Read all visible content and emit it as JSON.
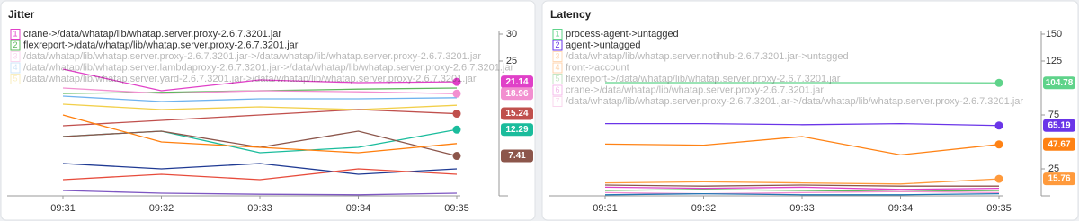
{
  "chart_data": [
    {
      "type": "line",
      "title": "Jitter",
      "categories": [
        "09:31",
        "09:32",
        "09:33",
        "09:34",
        "09:35"
      ],
      "ylim": [
        0,
        30
      ],
      "yticks": [
        25,
        30
      ],
      "series": [
        {
          "key": "1",
          "name": "crane->/data/whatap/lib/whatap.server.proxy-2.6.7.3201.jar",
          "color": "#e040c8",
          "values": [
            23.5,
            19.5,
            21.5,
            21,
            21.14
          ],
          "show_value_label": true
        },
        {
          "key": "2",
          "name": "flexreport->/data/whatap/lib/whatap.server.proxy-2.6.7.3201.jar",
          "color": "#5cb85c",
          "values": [
            19,
            19.2,
            19.5,
            19.8,
            20
          ]
        },
        {
          "key": "3",
          "name": "/data/whatap/lib/whatap.server.proxy-2.6.7.3201.jar->/data/whatap/lib/whatap.server.proxy-2.6.7.3201.jar",
          "color": "#f28fd0",
          "values": [
            20,
            19,
            19.5,
            19.3,
            18.96
          ],
          "show_value_label": true
        },
        {
          "key": "4",
          "name": "/data/whatap/lib/whatap.server.lambdaproxy-2.6.7.3201.jar->/data/whatap/lib/whatap.server.proxy-2.6.7.3201.jar",
          "color": "#6fb3ef",
          "values": [
            18.5,
            17.5,
            18,
            18,
            18.2
          ]
        },
        {
          "key": "5",
          "name": "/data/whatap/lib/whatap.server.yard-2.6.7.3201.jar->/data/whatap/lib/whatap.server.proxy-2.6.7.3201.jar",
          "color": "#f2cf4a",
          "values": [
            17,
            16,
            16.5,
            16,
            16.8
          ]
        },
        {
          "color": "#c0504d",
          "values": [
            13,
            14,
            15,
            16,
            15.24
          ],
          "show_value_label": true
        },
        {
          "color": "#1abc9c",
          "values": [
            11,
            12,
            8,
            9,
            12.29
          ],
          "show_value_label": true
        },
        {
          "color": "#8c564b",
          "values": [
            11,
            12,
            9,
            12,
            7.41
          ],
          "show_value_label": true
        },
        {
          "color": "#ff7f0e",
          "values": [
            15,
            10,
            9,
            8,
            9.7
          ]
        },
        {
          "color": "#1f3a93",
          "values": [
            6,
            5,
            6,
            4,
            5
          ]
        },
        {
          "color": "#e74c3c",
          "values": [
            3,
            4,
            3,
            5,
            4
          ]
        },
        {
          "color": "#7e57c2",
          "values": [
            1,
            0.5,
            0.3,
            0.2,
            0.5
          ]
        }
      ]
    },
    {
      "type": "line",
      "title": "Latency",
      "categories": [
        "09:31",
        "09:32",
        "09:33",
        "09:34",
        "09:35"
      ],
      "ylim": [
        0,
        150
      ],
      "yticks": [
        25,
        75,
        125,
        150
      ],
      "series": [
        {
          "key": "1",
          "name": "process-agent->untagged",
          "color": "#5fd38a",
          "values": [
            105,
            105,
            105,
            105,
            104.78
          ],
          "show_value_label": true
        },
        {
          "key": "2",
          "name": "agent->untagged",
          "color": "#6a35e8",
          "values": [
            67,
            67,
            66,
            67,
            65.19
          ],
          "show_value_label": true
        },
        {
          "key": "3",
          "name": "/data/whatap/lib/whatap.server.notihub-2.6.7.3201.jar->untagged",
          "color": "#ff9a3c",
          "values": [
            12,
            13,
            12,
            11,
            15.76
          ],
          "show_value_label": true
        },
        {
          "key": "4",
          "name": "front->account",
          "color": "#ff8214",
          "values": [
            48,
            47,
            55,
            38,
            47.67
          ],
          "show_value_label": true
        },
        {
          "key": "5",
          "name": "flexreport->/data/whatap/lib/whatap.server.proxy-2.6.7.3201.jar",
          "color": "#5cb85c",
          "values": [
            5,
            6,
            5,
            4,
            5
          ]
        },
        {
          "key": "6",
          "name": "crane->/data/whatap/lib/whatap.server.proxy-2.6.7.3201.jar",
          "color": "#e040c8",
          "values": [
            8,
            7,
            8,
            6,
            7
          ]
        },
        {
          "key": "7",
          "name": "/data/whatap/lib/whatap.server.proxy-2.6.7.3201.jar->/data/whatap/lib/whatap.server.proxy-2.6.7.3201.jar",
          "color": "#f28fd0",
          "values": [
            3,
            2,
            3,
            4,
            3
          ]
        },
        {
          "color": "#1f77b4",
          "values": [
            1,
            2,
            1,
            1,
            2
          ]
        },
        {
          "color": "#8c564b",
          "values": [
            10,
            9,
            10,
            9,
            9
          ]
        }
      ]
    }
  ]
}
